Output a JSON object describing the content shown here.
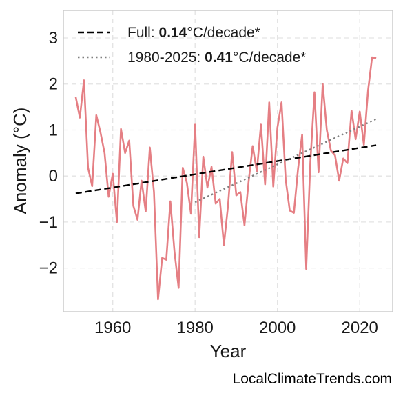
{
  "chart_data": {
    "type": "line",
    "title": "",
    "xlabel": "Year",
    "ylabel": "Anomaly (°C)",
    "xlim": [
      1948,
      2028
    ],
    "ylim": [
      -2.95,
      3.6
    ],
    "x_ticks": [
      1960,
      1980,
      2000,
      2020
    ],
    "y_ticks": [
      -2,
      -1,
      0,
      1,
      2,
      3
    ],
    "y_tick_labels": [
      "−2",
      "−1",
      "0",
      "1",
      "2",
      "3"
    ],
    "grid": true,
    "legend_position": "top-left",
    "series": [
      {
        "name": "",
        "color": "#e57f84",
        "style": "solid",
        "x": [
          1951,
          1952,
          1953,
          1954,
          1955,
          1956,
          1957,
          1958,
          1959,
          1960,
          1961,
          1962,
          1963,
          1964,
          1965,
          1966,
          1967,
          1968,
          1969,
          1970,
          1971,
          1972,
          1973,
          1974,
          1975,
          1976,
          1977,
          1978,
          1979,
          1980,
          1981,
          1982,
          1983,
          1984,
          1985,
          1986,
          1987,
          1988,
          1989,
          1990,
          1991,
          1992,
          1993,
          1994,
          1995,
          1996,
          1997,
          1998,
          1999,
          2000,
          2001,
          2002,
          2003,
          2004,
          2005,
          2006,
          2007,
          2008,
          2009,
          2010,
          2011,
          2012,
          2013,
          2014,
          2015,
          2016,
          2017,
          2018,
          2019,
          2020,
          2021,
          2022,
          2023,
          2024
        ],
        "y": [
          1.72,
          1.27,
          2.08,
          0.18,
          -0.22,
          1.32,
          0.95,
          0.5,
          -0.45,
          0.05,
          -1.0,
          1.02,
          0.5,
          0.77,
          -0.65,
          -0.95,
          -0.1,
          -0.77,
          0.62,
          -0.35,
          -2.68,
          -1.78,
          -1.82,
          -0.55,
          -1.65,
          -2.43,
          0.18,
          -0.15,
          -0.82,
          1.12,
          -1.33,
          0.42,
          -0.25,
          0.2,
          -0.6,
          -0.5,
          -1.5,
          -0.65,
          0.52,
          -0.42,
          -0.35,
          -1.07,
          -0.12,
          0.65,
          0.1,
          1.12,
          -0.18,
          1.6,
          -0.23,
          1.05,
          1.6,
          -0.08,
          -0.75,
          -0.8,
          0.15,
          0.9,
          -2.02,
          0.3,
          1.82,
          0.08,
          2.0,
          1.0,
          0.55,
          0.45,
          -0.1,
          0.38,
          0.28,
          1.42,
          0.8,
          1.4,
          0.68,
          1.85,
          2.58,
          2.56
        ]
      },
      {
        "name": "Full",
        "color": "#000000",
        "style": "dashed",
        "x": [
          1951,
          2024
        ],
        "y": [
          -0.38,
          0.67
        ]
      },
      {
        "name": "1980-2025",
        "color": "#808080",
        "style": "dotted",
        "x": [
          1980,
          2024
        ],
        "y": [
          -0.57,
          1.24
        ]
      }
    ],
    "legend": [
      {
        "prefix": "Full: ",
        "rate": "0.14",
        "suffix": "°C/decade*"
      },
      {
        "prefix": "1980-2025: ",
        "rate": "0.41",
        "suffix": "°C/decade*"
      }
    ]
  },
  "footer": {
    "credit": "LocalClimateTrends.com"
  }
}
